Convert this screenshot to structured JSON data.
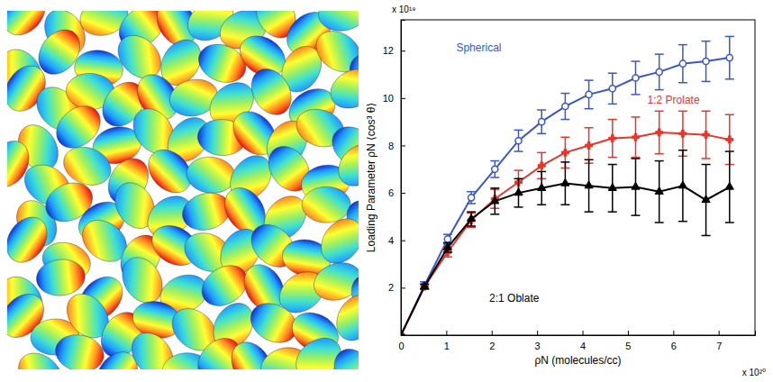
{
  "chart_data": {
    "type": "line",
    "x_label": "ρN (molecules/cc)",
    "y_label": "Loading Parameter ρN ⟨cos³ θ⟩",
    "x_multiplier": "x 10²⁰",
    "y_multiplier": "x 10¹⁹",
    "x": [
      0,
      0.52,
      1.03,
      1.55,
      2.07,
      2.59,
      3.1,
      3.62,
      4.14,
      4.66,
      5.17,
      5.69,
      6.21,
      6.72,
      7.24
    ],
    "xlim": [
      0,
      7.8
    ],
    "ylim": [
      0,
      13.3
    ],
    "xticks": [
      0,
      1,
      2,
      3,
      4,
      5,
      6,
      7
    ],
    "yticks": [
      2,
      4,
      6,
      8,
      10,
      12
    ],
    "series": [
      {
        "name": "Spherical",
        "color": "#3a56c8",
        "marker": "circle",
        "values": [
          0,
          2.1,
          4.05,
          5.8,
          7.0,
          8.2,
          9.0,
          9.65,
          10.15,
          10.4,
          10.85,
          11.1,
          11.45,
          11.55,
          11.7
        ],
        "errors": [
          0,
          0.15,
          0.2,
          0.25,
          0.35,
          0.45,
          0.5,
          0.55,
          0.6,
          0.65,
          0.7,
          0.75,
          0.8,
          0.85,
          0.9
        ]
      },
      {
        "name": "1:2 Prolate",
        "color": "#e8352a",
        "marker": "plus",
        "values": [
          0,
          2.05,
          3.5,
          4.85,
          5.75,
          6.45,
          7.15,
          7.7,
          8.0,
          8.3,
          8.35,
          8.55,
          8.5,
          8.45,
          8.25
        ],
        "errors": [
          0,
          0.1,
          0.2,
          0.3,
          0.4,
          0.5,
          0.55,
          0.65,
          0.75,
          0.8,
          0.85,
          0.9,
          0.95,
          1.0,
          1.05
        ]
      },
      {
        "name": "2:1 Oblate",
        "color": "#000000",
        "marker": "triangle",
        "values": [
          0,
          2.05,
          3.7,
          4.9,
          5.65,
          6.0,
          6.2,
          6.4,
          6.3,
          6.2,
          6.25,
          6.05,
          6.3,
          5.7,
          6.25
        ],
        "errors": [
          0,
          0.1,
          0.2,
          0.3,
          0.55,
          0.6,
          0.7,
          0.9,
          1.1,
          1.0,
          1.2,
          1.3,
          1.5,
          1.5,
          1.5
        ]
      }
    ]
  }
}
